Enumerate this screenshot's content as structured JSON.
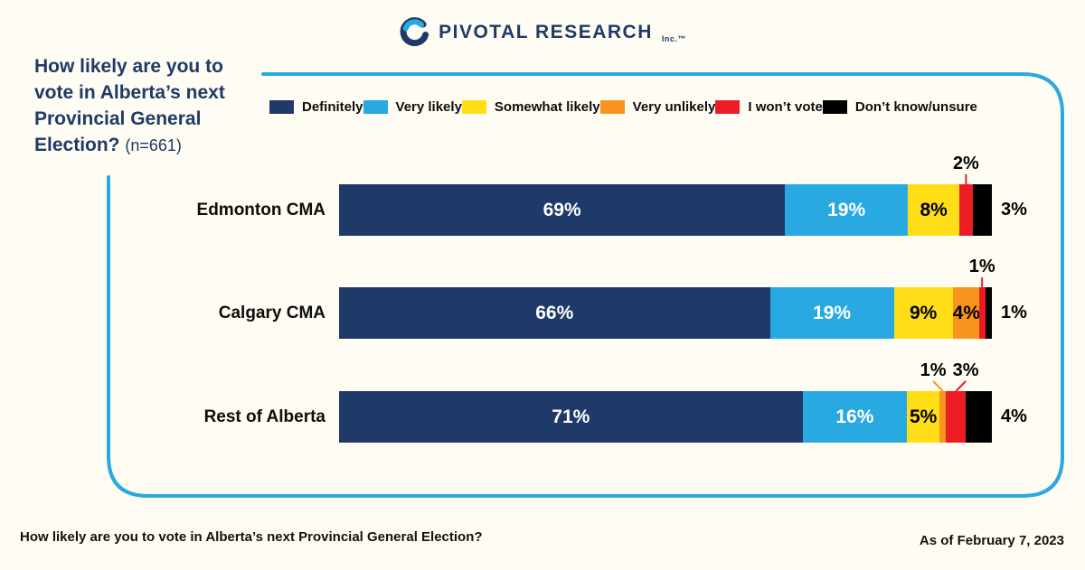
{
  "page": {
    "background": "#FFFDF3",
    "frame_color": "#2AA9E0"
  },
  "logo": {
    "brand": "PIVOTAL RESEARCH",
    "suffix": "Inc.™",
    "navy": "#1E3A68",
    "blue": "#29A9E1"
  },
  "title": {
    "text": "How likely are you to vote in Alberta’s next Provincial General Election?",
    "sample": "(n=661)"
  },
  "footer": {
    "left": "How likely are you to vote in Alberta’s next Provincial General Election?",
    "right": "As of February 7, 2023"
  },
  "chart_data": {
    "type": "bar",
    "subtype": "horizontal-stacked",
    "title": "How likely are you to vote in Alberta’s next Provincial General Election? (n=661)",
    "categories": [
      "Edmonton CMA",
      "Calgary CMA",
      "Rest of Alberta"
    ],
    "series": [
      {
        "name": "Definitely",
        "color": "#1F3A69",
        "label_color": "#FFFFFF",
        "values": [
          69,
          66,
          71
        ]
      },
      {
        "name": "Very likely",
        "color": "#29A9E1",
        "label_color": "#FFFFFF",
        "values": [
          19,
          19,
          16
        ]
      },
      {
        "name": "Somewhat likely",
        "color": "#FFDE17",
        "label_color": "#000000",
        "values": [
          8,
          9,
          5
        ]
      },
      {
        "name": "Very unlikely",
        "color": "#F7941D",
        "label_color": "#000000",
        "values": [
          0,
          4,
          1
        ]
      },
      {
        "name": "I won’t vote",
        "color": "#EC1C24",
        "label_color": "#000000",
        "values": [
          2,
          1,
          3
        ]
      },
      {
        "name": "Don’t know/unsure",
        "color": "#000000",
        "label_color": "#000000",
        "values": [
          3,
          1,
          4
        ]
      }
    ],
    "value_suffix": "%",
    "xlim": [
      0,
      100
    ],
    "grid": false,
    "legend_position": "top",
    "axis_labels": "none"
  }
}
